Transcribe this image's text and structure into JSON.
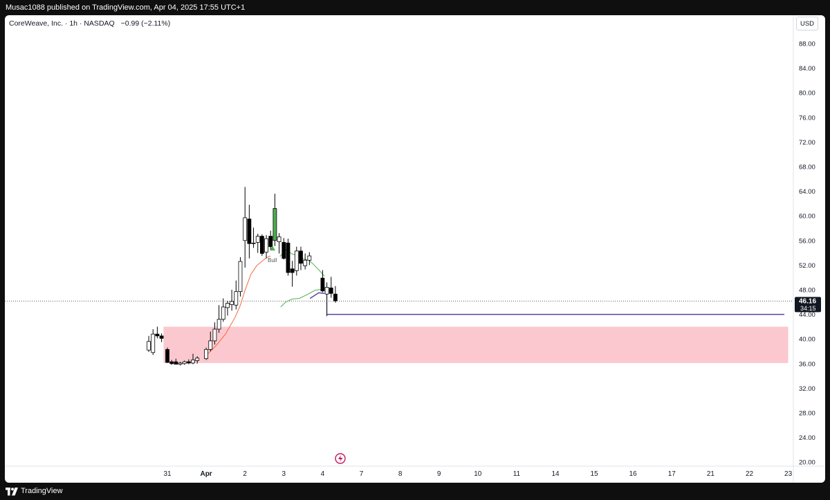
{
  "header": {
    "published_text": "Musac1088 published on TradingView.com, Apr 04, 2025 17:55 UTC+1"
  },
  "symbol": {
    "name": "CoreWeave, Inc. · 1h · NASDAQ",
    "change": "−0.99 (−2.11%)"
  },
  "currency_label": "USD",
  "footer": {
    "brand": "TradingView"
  },
  "colors": {
    "up_body": "#ffffff",
    "down_body": "#000000",
    "candle_outline": "#000000",
    "signal_candle": "#4caf50",
    "ema_fast": "#f06a3e",
    "ema_slow": "#4caf50",
    "support_line": "#5b3fa6",
    "zone_fill": "#fcc8cf",
    "price_line": "#555555"
  },
  "chart_data": {
    "type": "candlestick",
    "x_ticks": [
      "31",
      "Apr",
      "2",
      "3",
      "4",
      "7",
      "8",
      "9",
      "10",
      "11",
      "14",
      "15",
      "16",
      "17",
      "21",
      "22",
      "23"
    ],
    "x_tick_pos": [
      0,
      2,
      4,
      6,
      8,
      10,
      12,
      14,
      16,
      18,
      20,
      22,
      24,
      26,
      28,
      30,
      32
    ],
    "y_ticks": [
      "88.00",
      "84.00",
      "80.00",
      "76.00",
      "72.00",
      "68.00",
      "64.00",
      "60.00",
      "56.00",
      "52.00",
      "48.00",
      "44.00",
      "40.00",
      "36.00",
      "32.00",
      "28.00",
      "24.00",
      "20.00"
    ],
    "ylim": [
      18,
      91
    ],
    "candles": [
      {
        "t": -0.96,
        "o": 38.2,
        "h": 40.5,
        "l": 37.9,
        "c": 39.6
      },
      {
        "t": -0.74,
        "o": 37.8,
        "h": 41.6,
        "l": 37.4,
        "c": 40.8
      },
      {
        "t": -0.52,
        "o": 40.8,
        "h": 42.0,
        "l": 40.1,
        "c": 40.5
      },
      {
        "t": -0.3,
        "o": 40.5,
        "h": 40.9,
        "l": 39.5,
        "c": 40.1
      },
      {
        "t": 0.0,
        "o": 38.3,
        "h": 38.6,
        "l": 36.1,
        "c": 36.2
      },
      {
        "t": 0.22,
        "o": 36.3,
        "h": 36.6,
        "l": 35.8,
        "c": 36.0
      },
      {
        "t": 0.44,
        "o": 36.3,
        "h": 36.8,
        "l": 35.9,
        "c": 35.9
      },
      {
        "t": 0.66,
        "o": 35.9,
        "h": 36.3,
        "l": 35.7,
        "c": 36.1
      },
      {
        "t": 0.88,
        "o": 36.0,
        "h": 36.5,
        "l": 35.8,
        "c": 36.3
      },
      {
        "t": 1.1,
        "o": 36.3,
        "h": 36.7,
        "l": 35.9,
        "c": 36.1
      },
      {
        "t": 1.32,
        "o": 36.1,
        "h": 37.6,
        "l": 35.9,
        "c": 36.6
      },
      {
        "t": 1.54,
        "o": 36.5,
        "h": 37.2,
        "l": 36.0,
        "c": 36.9
      },
      {
        "t": 2.0,
        "o": 36.8,
        "h": 38.6,
        "l": 36.6,
        "c": 38.3
      },
      {
        "t": 2.22,
        "o": 38.3,
        "h": 41.2,
        "l": 38.0,
        "c": 39.7
      },
      {
        "t": 2.44,
        "o": 39.7,
        "h": 42.7,
        "l": 39.1,
        "c": 41.6
      },
      {
        "t": 2.66,
        "o": 41.6,
        "h": 45.5,
        "l": 41.0,
        "c": 43.2
      },
      {
        "t": 2.88,
        "o": 43.2,
        "h": 46.6,
        "l": 42.8,
        "c": 45.2
      },
      {
        "t": 3.1,
        "o": 45.1,
        "h": 46.2,
        "l": 43.8,
        "c": 45.8
      },
      {
        "t": 3.32,
        "o": 45.6,
        "h": 48.0,
        "l": 44.6,
        "c": 46.1
      },
      {
        "t": 3.54,
        "o": 45.5,
        "h": 49.5,
        "l": 44.8,
        "c": 47.7
      },
      {
        "t": 3.76,
        "o": 47.7,
        "h": 53.3,
        "l": 46.9,
        "c": 52.6
      },
      {
        "t": 4.0,
        "o": 56.0,
        "h": 64.7,
        "l": 51.6,
        "c": 59.7
      },
      {
        "t": 4.22,
        "o": 59.5,
        "h": 61.8,
        "l": 53.1,
        "c": 55.5
      },
      {
        "t": 4.44,
        "o": 55.5,
        "h": 58.1,
        "l": 54.8,
        "c": 55.6
      },
      {
        "t": 4.66,
        "o": 55.7,
        "h": 57.1,
        "l": 54.0,
        "c": 56.7
      },
      {
        "t": 4.88,
        "o": 56.7,
        "h": 57.0,
        "l": 53.5,
        "c": 53.9
      },
      {
        "t": 5.1,
        "o": 54.1,
        "h": 56.9,
        "l": 53.1,
        "c": 56.3
      },
      {
        "t": 5.32,
        "o": 56.7,
        "h": 57.6,
        "l": 54.4,
        "c": 55.0
      },
      {
        "t": 5.54,
        "o": 56.0,
        "h": 63.6,
        "l": 55.1,
        "c": 61.2,
        "signal": true
      },
      {
        "t": 5.76,
        "o": 55.8,
        "h": 57.2,
        "l": 53.9,
        "c": 56.6
      },
      {
        "t": 6.0,
        "o": 55.7,
        "h": 56.4,
        "l": 52.9,
        "c": 53.1
      },
      {
        "t": 6.22,
        "o": 55.6,
        "h": 56.3,
        "l": 50.3,
        "c": 50.8
      },
      {
        "t": 6.44,
        "o": 51.4,
        "h": 52.7,
        "l": 48.5,
        "c": 50.8
      },
      {
        "t": 6.66,
        "o": 51.1,
        "h": 55.0,
        "l": 50.3,
        "c": 54.3
      },
      {
        "t": 6.88,
        "o": 54.3,
        "h": 55.0,
        "l": 51.2,
        "c": 52.3
      },
      {
        "t": 7.1,
        "o": 51.9,
        "h": 53.9,
        "l": 51.3,
        "c": 52.8
      },
      {
        "t": 7.32,
        "o": 52.8,
        "h": 54.1,
        "l": 52.0,
        "c": 53.5
      },
      {
        "t": 8.0,
        "o": 49.9,
        "h": 51.2,
        "l": 47.6,
        "c": 47.8
      },
      {
        "t": 8.22,
        "o": 47.3,
        "h": 49.2,
        "l": 43.7,
        "c": 48.4
      },
      {
        "t": 8.44,
        "o": 48.3,
        "h": 50.1,
        "l": 46.7,
        "c": 47.4
      },
      {
        "t": 8.66,
        "o": 47.3,
        "h": 48.6,
        "l": 45.9,
        "c": 46.2
      }
    ],
    "ema_fast": [
      [
        2.0,
        37.3
      ],
      [
        2.5,
        38.9
      ],
      [
        3.0,
        40.8
      ],
      [
        3.5,
        43.6
      ],
      [
        3.76,
        45.5
      ],
      [
        4.0,
        47.9
      ],
      [
        4.3,
        50.5
      ],
      [
        4.6,
        51.9
      ],
      [
        4.9,
        52.7
      ],
      [
        5.1,
        53.2
      ],
      [
        5.32,
        53.5
      ]
    ],
    "ema_slow": [
      [
        5.8,
        53.4
      ],
      [
        6.1,
        54.5
      ],
      [
        6.44,
        53.8
      ],
      [
        6.8,
        53.5
      ],
      [
        7.0,
        53.0
      ],
      [
        7.3,
        52.8
      ],
      [
        7.6,
        51.9
      ],
      [
        7.9,
        50.9
      ],
      [
        8.1,
        50.2
      ]
    ],
    "ema_slow_2": [
      [
        5.84,
        45.2
      ],
      [
        6.1,
        46.0
      ],
      [
        6.44,
        46.5
      ],
      [
        6.8,
        46.6
      ],
      [
        7.2,
        47.2
      ],
      [
        7.6,
        47.9
      ],
      [
        8.0,
        48.1
      ],
      [
        8.3,
        48.4
      ]
    ],
    "purple_short": [
      [
        7.35,
        46.6
      ],
      [
        7.8,
        47.5
      ],
      [
        8.1,
        47.4
      ]
    ],
    "support_level": {
      "price": 44.0,
      "t_start": 8.22,
      "t_end": 31.8
    },
    "zone": {
      "top": 42.0,
      "bottom": 36.1,
      "t_start": -0.2,
      "t_end": 32.0
    },
    "last_price": "46.16",
    "countdown": "34:15",
    "signal_label": "Bull"
  }
}
